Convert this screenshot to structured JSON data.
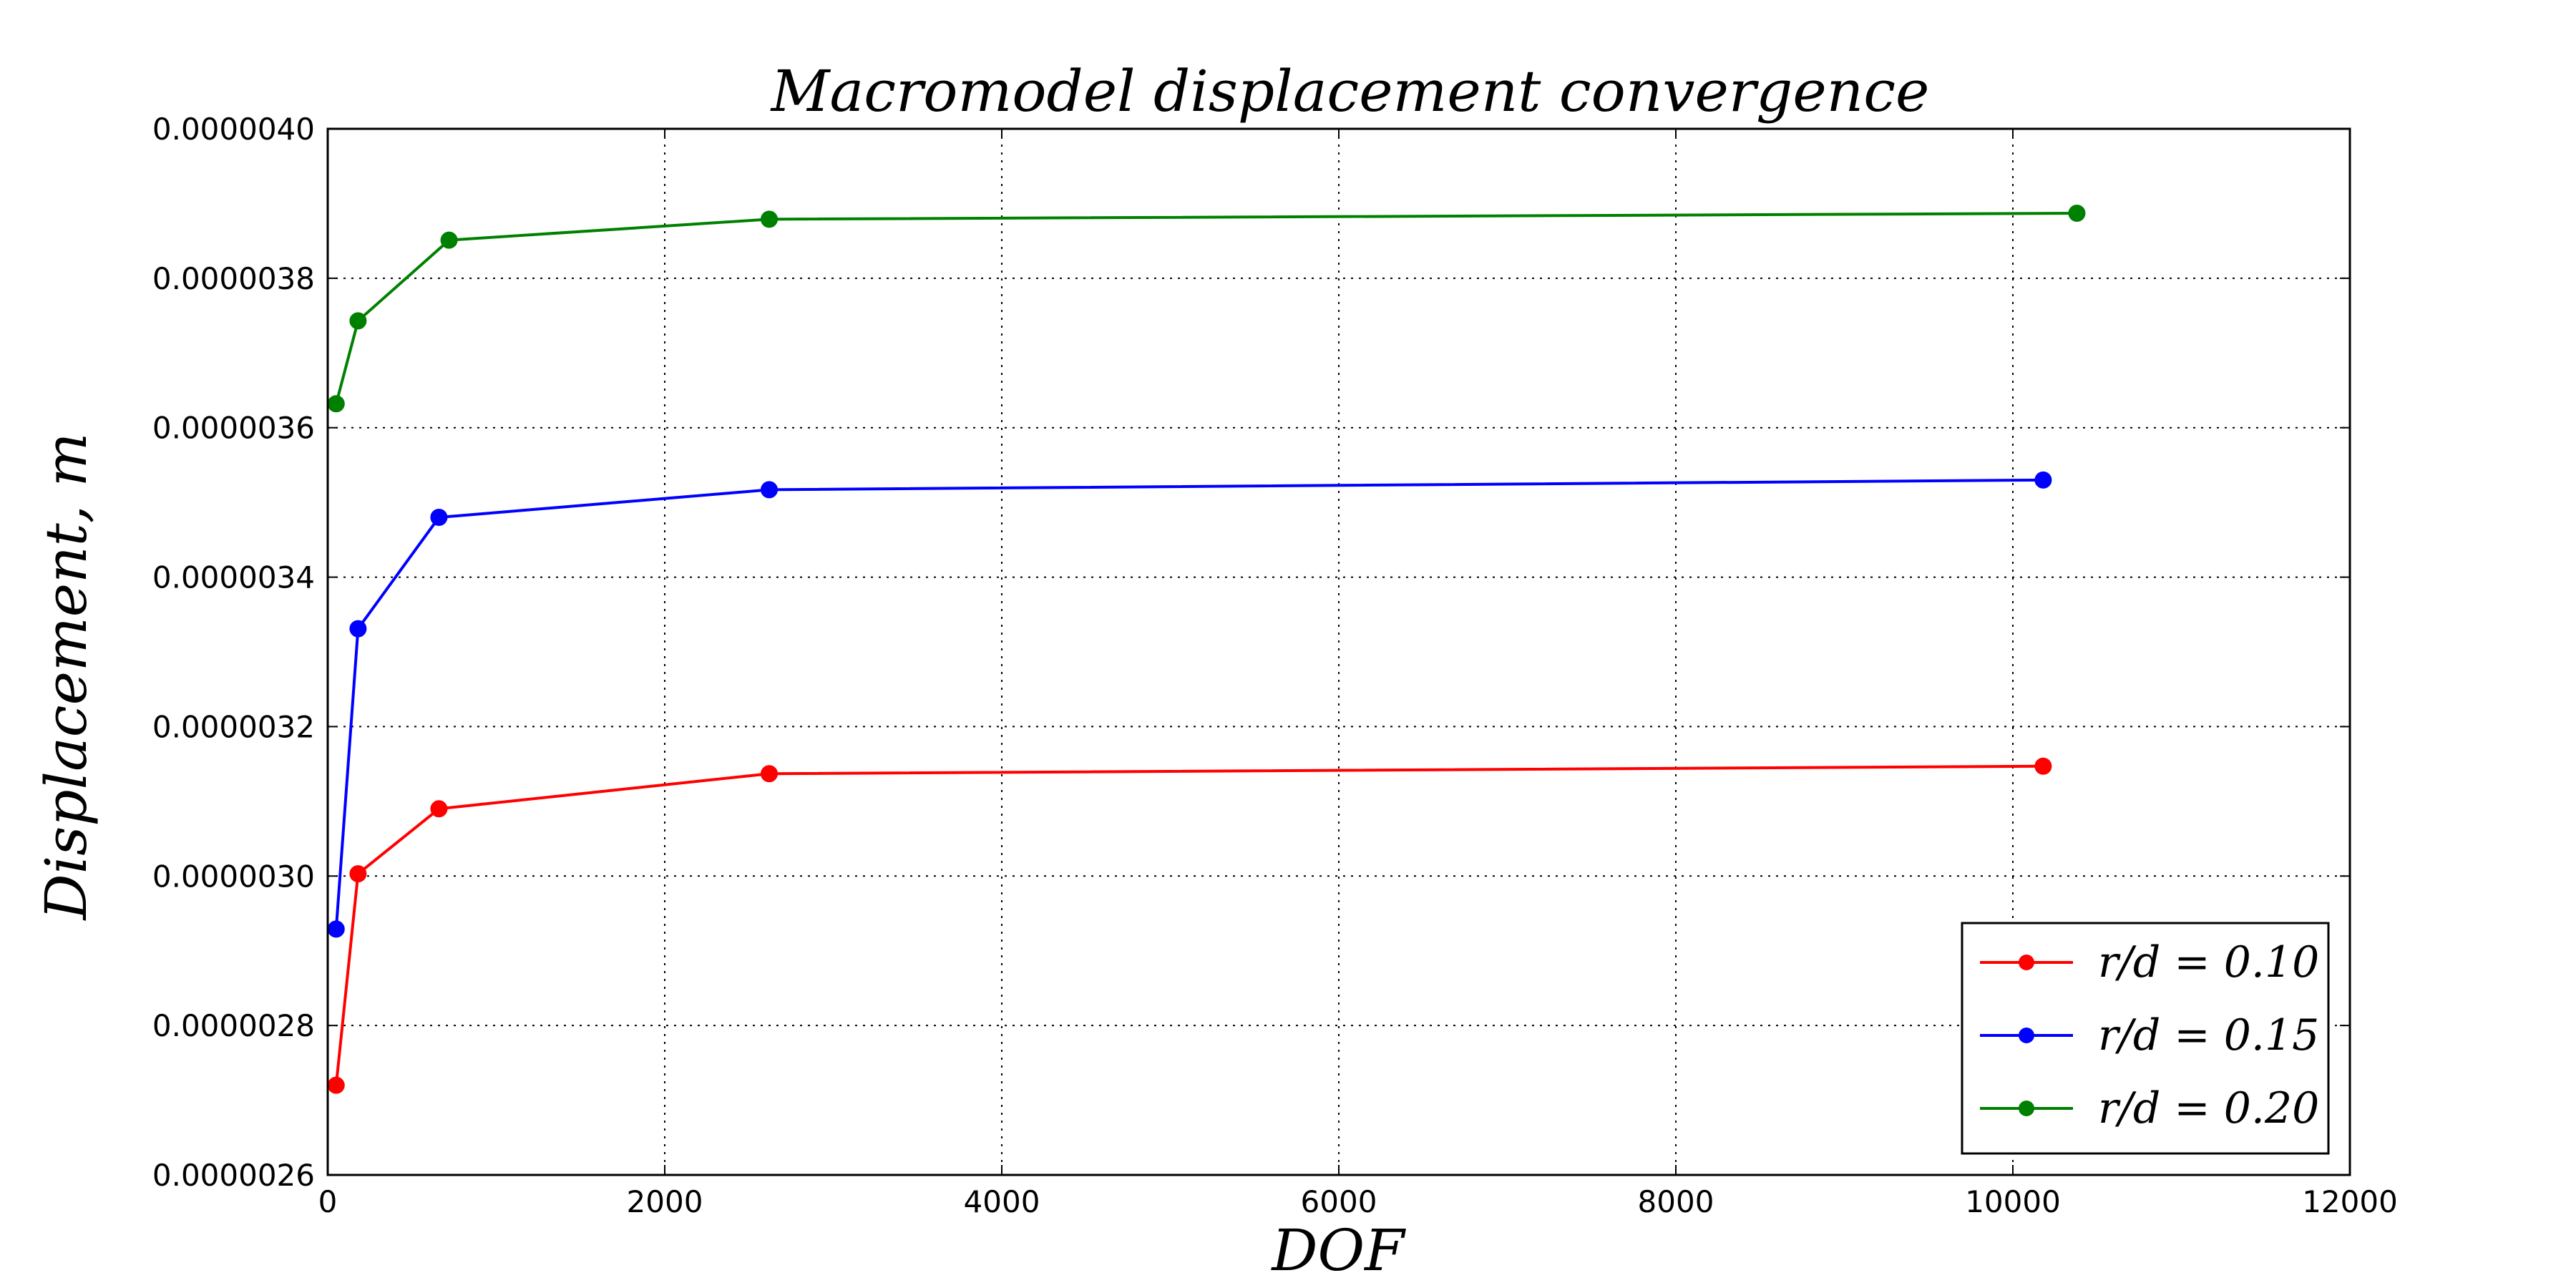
{
  "chart_data": {
    "type": "line",
    "title": "Macromodel displacement convergence",
    "xlabel": "DOF",
    "ylabel": "Displacement, m",
    "xlim": [
      0,
      12000
    ],
    "ylim": [
      2.6e-06,
      4e-06
    ],
    "xticks": [
      0,
      2000,
      4000,
      6000,
      8000,
      10000,
      12000
    ],
    "xtick_labels": [
      "0",
      "2000",
      "4000",
      "6000",
      "8000",
      "10000",
      "12000"
    ],
    "yticks": [
      2.6e-06,
      2.8e-06,
      3e-06,
      3.2e-06,
      3.4e-06,
      3.6e-06,
      3.8e-06,
      4e-06
    ],
    "ytick_labels": [
      "0.0000026",
      "0.0000028",
      "0.0000030",
      "0.0000032",
      "0.0000034",
      "0.0000036",
      "0.0000038",
      "0.0000040"
    ],
    "grid": true,
    "legend_position": "lower-right",
    "series": [
      {
        "name": "r/d = 0.10",
        "color": "#ff0000",
        "x": [
          50,
          180,
          660,
          2620,
          10180
        ],
        "y": [
          2.72e-06,
          3.003e-06,
          3.09e-06,
          3.137e-06,
          3.147e-06
        ]
      },
      {
        "name": "r/d = 0.15",
        "color": "#0000ff",
        "x": [
          50,
          180,
          660,
          2620,
          10180
        ],
        "y": [
          2.929e-06,
          3.331e-06,
          3.48e-06,
          3.517e-06,
          3.53e-06
        ]
      },
      {
        "name": "r/d = 0.20",
        "color": "#008000",
        "x": [
          50,
          180,
          720,
          2620,
          10380
        ],
        "y": [
          3.632e-06,
          3.743e-06,
          3.851e-06,
          3.879e-06,
          3.887e-06
        ]
      }
    ]
  }
}
